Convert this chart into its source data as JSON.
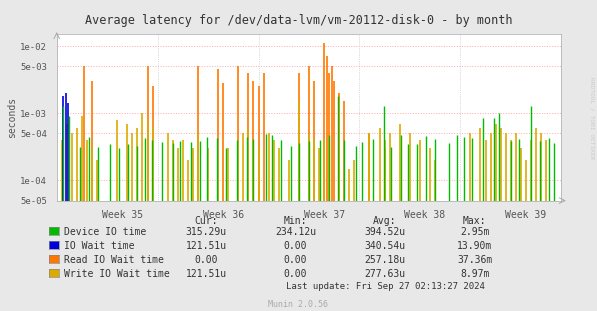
{
  "title": "Average latency for /dev/data-lvm/vm-20112-disk-0 - by month",
  "ylabel": "seconds",
  "right_label": "RRDTOOL / TOBI OETIKER",
  "xlabel_weeks": [
    "Week 35",
    "Week 36",
    "Week 37",
    "Week 38",
    "Week 39"
  ],
  "background_color": "#e8e8e8",
  "plot_bg_color": "#ffffff",
  "grid_color_h": "#ffb0b0",
  "grid_color_v": "#d0d0d0",
  "colors": {
    "green": "#00bb00",
    "blue": "#0000dd",
    "orange": "#ff7700",
    "yellow": "#ddaa00"
  },
  "legend_items": [
    {
      "label": "Device IO time",
      "color": "#00bb00"
    },
    {
      "label": "IO Wait time",
      "color": "#0000dd"
    },
    {
      "label": "Read IO Wait time",
      "color": "#ff7700"
    },
    {
      "label": "Write IO Wait time",
      "color": "#ddaa00"
    }
  ],
  "stats_headers": [
    "Cur:",
    "Min:",
    "Avg:",
    "Max:"
  ],
  "stats_values": [
    [
      "315.29u",
      "234.12u",
      "394.52u",
      "2.95m"
    ],
    [
      "121.51u",
      "0.00",
      "340.54u",
      "13.90m"
    ],
    [
      "0.00",
      "0.00",
      "257.18u",
      "37.36m"
    ],
    [
      "121.51u",
      "0.00",
      "277.63u",
      "8.97m"
    ]
  ],
  "last_update": "Last update: Fri Sep 27 02:13:27 2024",
  "munin_version": "Munin 2.0.56"
}
